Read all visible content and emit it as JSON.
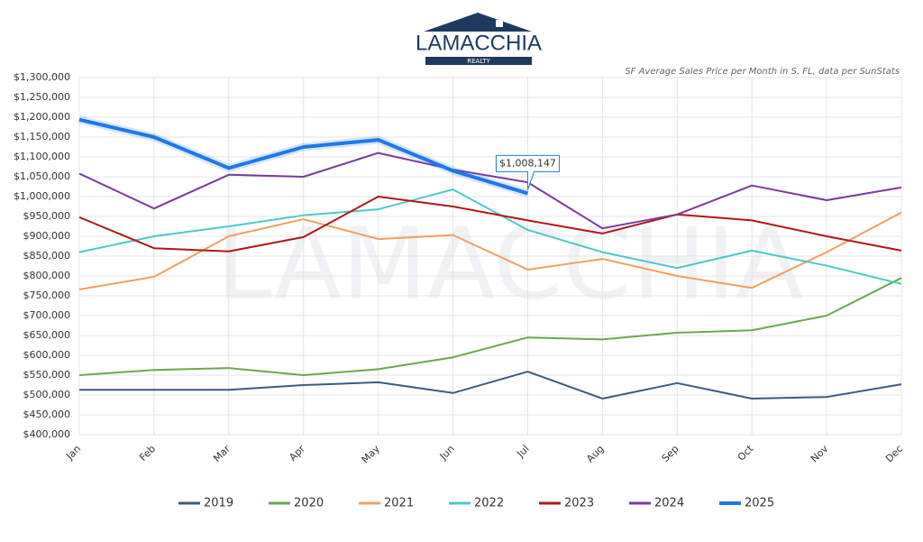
{
  "logo": {
    "name": "LAMACCHIA",
    "tagline": "REALTY"
  },
  "chart_data": {
    "type": "line",
    "subtitle": "SF Average Sales Price per Month in S. FL, data per SunStats",
    "categories": [
      "Jan",
      "Feb",
      "Mar",
      "Apr",
      "May",
      "Jun",
      "Jul",
      "Aug",
      "Sep",
      "Oct",
      "Nov",
      "Dec"
    ],
    "ylim": [
      400000,
      1300000
    ],
    "yticks": [
      {
        "value": 400000,
        "label": "$400,000"
      },
      {
        "value": 450000,
        "label": "$450,000"
      },
      {
        "value": 500000,
        "label": "$500,000"
      },
      {
        "value": 550000,
        "label": "$550,000"
      },
      {
        "value": 600000,
        "label": "$600,000"
      },
      {
        "value": 650000,
        "label": "$650,000"
      },
      {
        "value": 700000,
        "label": "$700,000"
      },
      {
        "value": 750000,
        "label": "$750,000"
      },
      {
        "value": 800000,
        "label": "$800,000"
      },
      {
        "value": 850000,
        "label": "$850,000"
      },
      {
        "value": 900000,
        "label": "$900,000"
      },
      {
        "value": 950000,
        "label": "$950,000"
      },
      {
        "value": 1000000,
        "label": "$1,000,000"
      },
      {
        "value": 1050000,
        "label": "$1,050,000"
      },
      {
        "value": 1100000,
        "label": "$1,100,000"
      },
      {
        "value": 1150000,
        "label": "$1,150,000"
      },
      {
        "value": 1200000,
        "label": "$1,200,000"
      },
      {
        "value": 1250000,
        "label": "$1,250,000"
      },
      {
        "value": 1300000,
        "label": "$1,300,000"
      }
    ],
    "grid": true,
    "legend": "bottom",
    "series": [
      {
        "name": "2019",
        "color": "#3b5b82",
        "values": [
          513000,
          513000,
          513000,
          525000,
          532000,
          505000,
          559000,
          491000,
          530000,
          491000,
          495000,
          527000
        ]
      },
      {
        "name": "2020",
        "color": "#6aa84f",
        "values": [
          550000,
          563000,
          568000,
          550000,
          565000,
          595000,
          645000,
          640000,
          657000,
          663000,
          700000,
          795000
        ]
      },
      {
        "name": "2021",
        "color": "#f0a060",
        "values": [
          766000,
          798000,
          900000,
          943000,
          893000,
          903000,
          816000,
          843000,
          800000,
          770000,
          860000,
          960000
        ]
      },
      {
        "name": "2022",
        "color": "#4ec8c8",
        "values": [
          860000,
          900000,
          925000,
          953000,
          968000,
          1018000,
          916000,
          860000,
          820000,
          864000,
          826000,
          780000
        ]
      },
      {
        "name": "2023",
        "color": "#b01818",
        "values": [
          948000,
          870000,
          862000,
          898000,
          1000000,
          975000,
          940000,
          907000,
          955000,
          940000,
          900000,
          864000
        ]
      },
      {
        "name": "2024",
        "color": "#7b3a9a",
        "values": [
          1058000,
          970000,
          1055000,
          1050000,
          1110000,
          1068000,
          1036000,
          920000,
          955000,
          1028000,
          991000,
          1023000
        ]
      },
      {
        "name": "2025",
        "color": "#1e78e8",
        "values": [
          1194000,
          1150000,
          1072000,
          1125000,
          1143000,
          1065000,
          1008147,
          null,
          null,
          null,
          null,
          null
        ],
        "value_labels": [
          null,
          null,
          null,
          null,
          null,
          null,
          "$1,008,147",
          null,
          null,
          null,
          null,
          null
        ]
      }
    ]
  }
}
